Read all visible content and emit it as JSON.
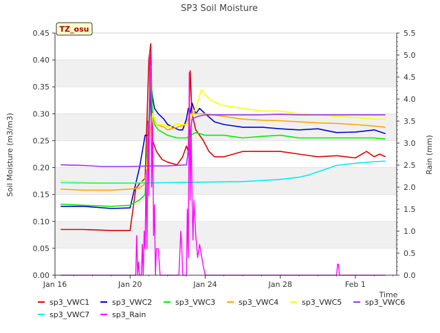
{
  "chart_data": {
    "type": "line",
    "title": "SP3 Soil Moisture",
    "xlabel": "Time",
    "ylabel": "Soil Moisture (m3/m3)",
    "y2label": "Rain (mm)",
    "site_badge": "TZ_osu",
    "xlim": [
      0,
      18.2
    ],
    "x_units": "days since Jan 16",
    "xticks": [
      {
        "v": 0,
        "label": "Jan 16"
      },
      {
        "v": 4,
        "label": "Jan 20"
      },
      {
        "v": 8,
        "label": "Jan 24"
      },
      {
        "v": 12,
        "label": "Jan 28"
      },
      {
        "v": 16,
        "label": "Feb 1"
      }
    ],
    "ylim": [
      0,
      0.45
    ],
    "yticks": [
      "0.00",
      "0.05",
      "0.10",
      "0.15",
      "0.20",
      "0.25",
      "0.30",
      "0.35",
      "0.40",
      "0.45"
    ],
    "y2lim": [
      0,
      5.5
    ],
    "y2ticks": [
      "0.0",
      "0.5",
      "1.0",
      "1.5",
      "2.0",
      "2.5",
      "3.0",
      "3.5",
      "4.0",
      "4.5",
      "5.0",
      "5.5"
    ],
    "grid": "horizontal bands",
    "legend_position": "below plot",
    "series": [
      {
        "name": "sp3_VWC1",
        "color": "#dd0000",
        "axis": "left",
        "x": [
          0.3,
          1.5,
          3.0,
          4.0,
          4.3,
          4.5,
          4.8,
          5.0,
          5.1,
          5.2,
          5.3,
          5.4,
          5.5,
          5.7,
          6.0,
          6.5,
          6.8,
          7.0,
          7.1,
          7.2,
          7.3,
          7.5,
          7.7,
          7.9,
          8.2,
          8.5,
          9.0,
          10.0,
          11.0,
          12.0,
          13.0,
          14.0,
          15.0,
          16.0,
          16.6,
          17.0,
          17.3,
          17.6
        ],
        "y": [
          0.085,
          0.085,
          0.083,
          0.083,
          0.16,
          0.17,
          0.18,
          0.4,
          0.43,
          0.25,
          0.24,
          0.23,
          0.225,
          0.215,
          0.21,
          0.205,
          0.22,
          0.24,
          0.23,
          0.38,
          0.3,
          0.27,
          0.26,
          0.25,
          0.23,
          0.22,
          0.22,
          0.23,
          0.23,
          0.23,
          0.225,
          0.22,
          0.222,
          0.218,
          0.23,
          0.22,
          0.225,
          0.22
        ]
      },
      {
        "name": "sp3_VWC2",
        "color": "#0000cc",
        "axis": "left",
        "x": [
          0.3,
          1.5,
          3.0,
          4.0,
          4.5,
          4.8,
          5.0,
          5.1,
          5.2,
          5.3,
          5.5,
          5.8,
          6.0,
          6.3,
          6.6,
          6.8,
          7.0,
          7.1,
          7.2,
          7.3,
          7.5,
          7.7,
          8.0,
          8.5,
          9.0,
          10.0,
          11.0,
          12.0,
          13.0,
          14.0,
          15.0,
          16.0,
          16.5,
          17.0,
          17.6
        ],
        "y": [
          0.128,
          0.128,
          0.124,
          0.125,
          0.2,
          0.26,
          0.26,
          0.36,
          0.33,
          0.31,
          0.3,
          0.29,
          0.28,
          0.275,
          0.27,
          0.27,
          0.29,
          0.31,
          0.3,
          0.32,
          0.3,
          0.31,
          0.3,
          0.285,
          0.28,
          0.275,
          0.275,
          0.272,
          0.27,
          0.272,
          0.265,
          0.266,
          0.268,
          0.27,
          0.263
        ]
      },
      {
        "name": "sp3_VWC3",
        "color": "#00ee00",
        "axis": "left",
        "x": [
          0.3,
          1.5,
          3.0,
          4.0,
          4.5,
          4.8,
          5.0,
          5.1,
          5.2,
          5.3,
          5.5,
          6.0,
          6.5,
          7.0,
          7.2,
          7.5,
          8.0,
          9.0,
          10.0,
          11.0,
          12.0,
          13.0,
          14.0,
          15.0,
          16.0,
          17.0,
          17.6
        ],
        "y": [
          0.132,
          0.13,
          0.128,
          0.13,
          0.14,
          0.15,
          0.29,
          0.39,
          0.3,
          0.28,
          0.27,
          0.26,
          0.255,
          0.255,
          0.26,
          0.265,
          0.26,
          0.26,
          0.255,
          0.258,
          0.26,
          0.255,
          0.255,
          0.255,
          0.255,
          0.255,
          0.253
        ]
      },
      {
        "name": "sp3_VWC4",
        "color": "#ffa500",
        "axis": "left",
        "x": [
          0.3,
          1.5,
          3.0,
          4.0,
          4.5,
          4.8,
          5.0,
          5.2,
          5.4,
          5.8,
          6.0,
          6.5,
          7.0,
          7.2,
          7.5,
          8.0,
          9.0,
          10.0,
          11.0,
          12.0,
          13.0,
          14.0,
          15.0,
          16.0,
          17.0,
          17.6
        ],
        "y": [
          0.16,
          0.158,
          0.158,
          0.16,
          0.162,
          0.17,
          0.25,
          0.3,
          0.28,
          0.275,
          0.27,
          0.275,
          0.28,
          0.3,
          0.3,
          0.3,
          0.295,
          0.29,
          0.288,
          0.287,
          0.285,
          0.283,
          0.282,
          0.28,
          0.277,
          0.275
        ]
      },
      {
        "name": "sp3_VWC5",
        "color": "#ffff00",
        "axis": "left",
        "x": [
          0.3,
          1.5,
          3.0,
          4.0,
          4.5,
          4.8,
          5.0,
          5.2,
          5.4,
          5.8,
          6.0,
          6.5,
          7.0,
          7.2,
          7.5,
          7.8,
          8.0,
          8.3,
          8.6,
          9.0,
          10.0,
          11.0,
          12.0,
          13.0,
          14.0,
          15.0,
          16.0,
          17.0,
          17.6
        ],
        "y": [
          0.175,
          0.173,
          0.172,
          0.172,
          0.172,
          0.175,
          0.24,
          0.3,
          0.28,
          0.28,
          0.275,
          0.28,
          0.28,
          0.29,
          0.31,
          0.345,
          0.335,
          0.325,
          0.32,
          0.315,
          0.31,
          0.305,
          0.305,
          0.3,
          0.298,
          0.295,
          0.293,
          0.29,
          0.29
        ]
      },
      {
        "name": "sp3_VWC6",
        "color": "#9933ee",
        "axis": "left",
        "x": [
          0.3,
          1.5,
          2.5,
          4.0,
          5.0,
          6.0,
          7.0,
          7.3,
          7.6,
          8.0,
          9.0,
          10.0,
          11.0,
          12.0,
          13.0,
          14.0,
          15.0,
          16.0,
          17.0,
          17.6
        ],
        "y": [
          0.205,
          0.204,
          0.202,
          0.202,
          0.203,
          0.203,
          0.205,
          0.29,
          0.295,
          0.298,
          0.298,
          0.298,
          0.298,
          0.299,
          0.298,
          0.298,
          0.298,
          0.298,
          0.298,
          0.298
        ]
      },
      {
        "name": "sp3_VWC7",
        "color": "#00eeee",
        "axis": "left",
        "x": [
          0.3,
          2.0,
          4.0,
          6.0,
          8.0,
          10.0,
          12.0,
          13.0,
          13.5,
          14.0,
          14.5,
          15.0,
          16.0,
          17.0,
          17.6
        ],
        "y": [
          0.172,
          0.171,
          0.171,
          0.172,
          0.173,
          0.174,
          0.178,
          0.182,
          0.186,
          0.192,
          0.198,
          0.204,
          0.208,
          0.211,
          0.212
        ]
      },
      {
        "name": "sp3_Rain",
        "color": "#ff00ff",
        "axis": "right",
        "x": [
          0.3,
          4.3,
          4.35,
          4.4,
          4.45,
          4.5,
          4.6,
          4.65,
          4.7,
          4.75,
          4.8,
          4.85,
          4.9,
          4.95,
          5.0,
          5.05,
          5.1,
          5.15,
          5.2,
          5.25,
          5.3,
          5.35,
          5.4,
          5.5,
          5.6,
          6.0,
          6.6,
          6.7,
          6.75,
          6.8,
          7.0,
          7.05,
          7.1,
          7.15,
          7.2,
          7.25,
          7.3,
          7.35,
          7.4,
          7.5,
          7.6,
          7.7,
          7.9,
          8.0,
          8.1,
          15.0,
          15.05,
          15.1,
          15.15,
          15.2,
          17.6
        ],
        "y": [
          0,
          0,
          0.9,
          0,
          0.3,
          0,
          0,
          0.7,
          0,
          1.0,
          0.6,
          2.4,
          0.6,
          3.5,
          1.8,
          5.1,
          4.6,
          2.0,
          3.4,
          0.9,
          1.6,
          0,
          0.6,
          0.6,
          0,
          0,
          0,
          1.0,
          0.7,
          0,
          0,
          1.5,
          0.4,
          4.6,
          1.7,
          3.4,
          1.8,
          0.8,
          1.7,
          0.9,
          0.4,
          0.7,
          0.2,
          0,
          0,
          0,
          0.25,
          0.25,
          0.0,
          0,
          0
        ]
      }
    ]
  }
}
